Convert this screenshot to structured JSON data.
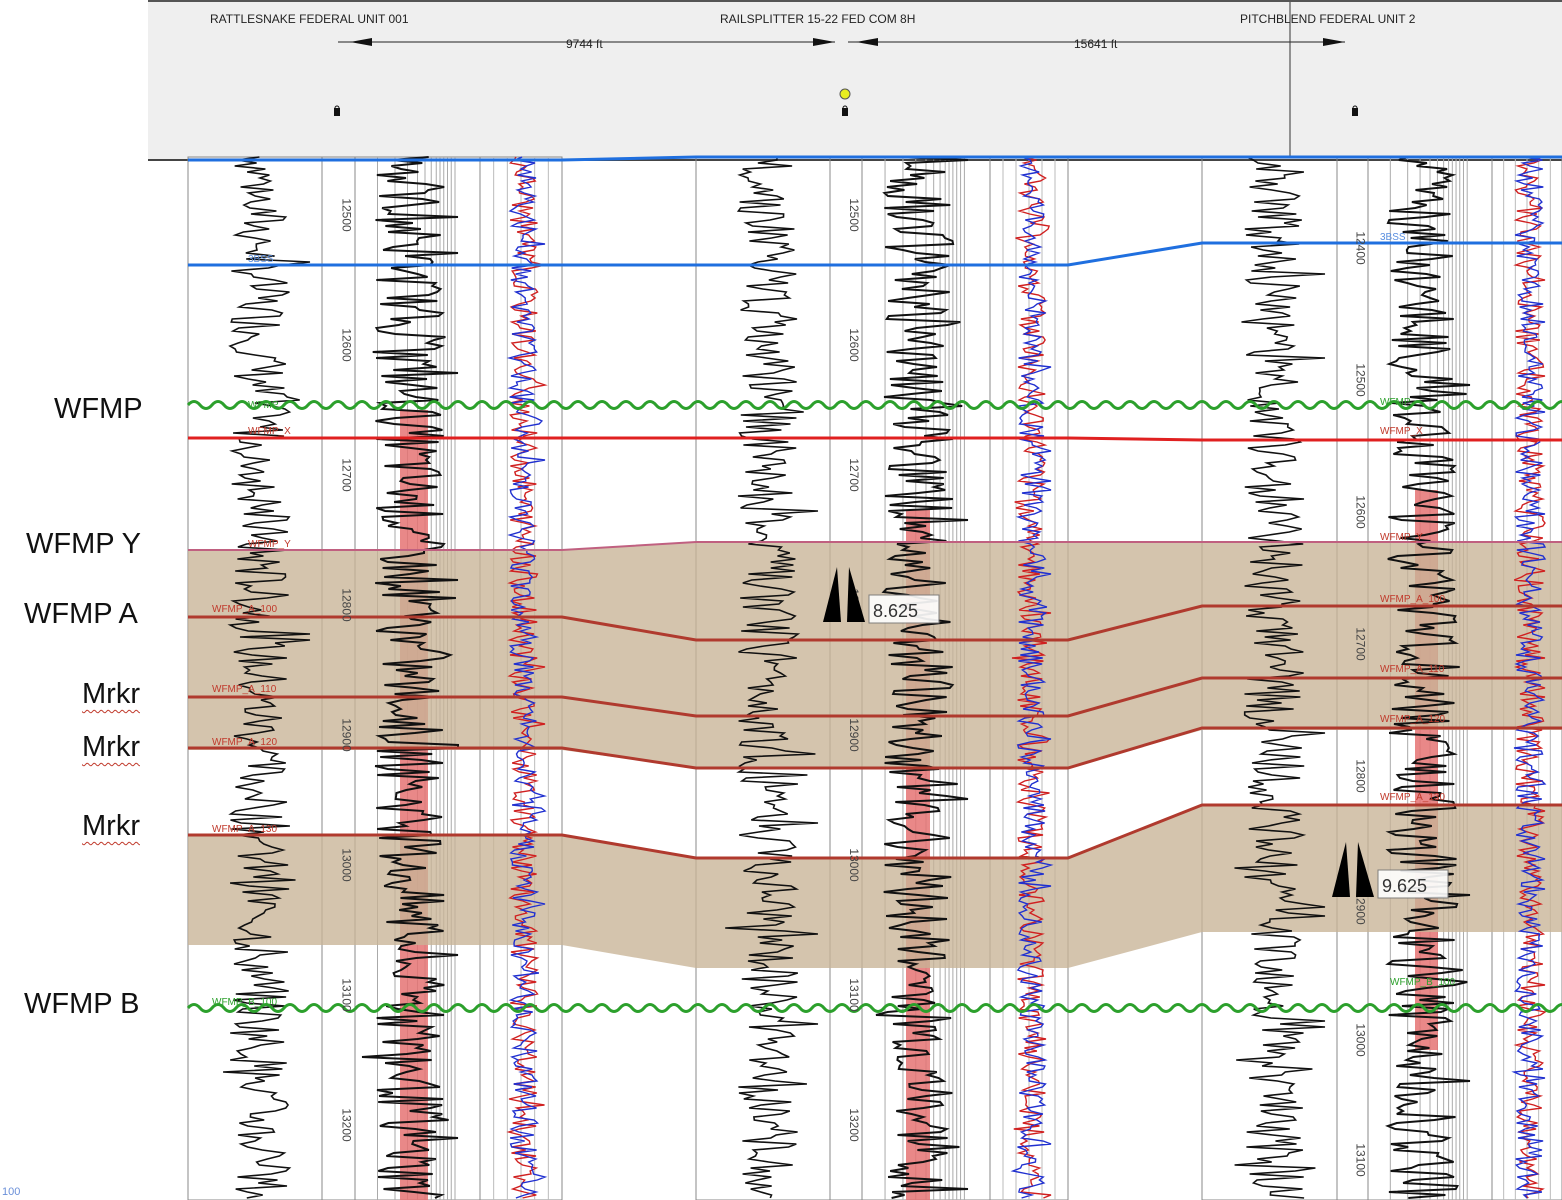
{
  "wells": [
    {
      "name": "RATTLESNAKE FEDERAL UNIT 001",
      "depths": [
        "12500",
        "12600",
        "12700",
        "12800",
        "12900",
        "13000",
        "13100",
        "13200"
      ]
    },
    {
      "name": "RAILSPLITTER 15-22 FED COM 8H",
      "depths": [
        "12500",
        "12600",
        "12700",
        "12800",
        "12900",
        "13000",
        "13100",
        "13200"
      ]
    },
    {
      "name": "PITCHBLEND FEDERAL UNIT 2",
      "depths": [
        "12400",
        "12500",
        "12600",
        "12700",
        "12800",
        "12900",
        "13000",
        "13100"
      ]
    }
  ],
  "distances": [
    "9744 ft",
    "15641 ft"
  ],
  "formations": [
    {
      "label": "WFMP",
      "color": "#2ca02c",
      "style": "wavy"
    },
    {
      "label": "WFMP Y",
      "color": "#c06080",
      "style": "solid"
    },
    {
      "label": "WFMP A",
      "color": "#b03a2e",
      "style": "solid"
    },
    {
      "label": "Mrkr",
      "color": "#b03a2e",
      "style": "solid"
    },
    {
      "label": "Mrkr",
      "color": "#b03a2e",
      "style": "solid"
    },
    {
      "label": "Mrkr",
      "color": "#b03a2e",
      "style": "solid"
    },
    {
      "label": "WFMP B",
      "color": "#2ca02c",
      "style": "wavy"
    }
  ],
  "track_picks": [
    "WFMP",
    "WFMP_X",
    "WFMP_Y",
    "WFMP_A_100",
    "WFMP_A_110",
    "WFMP_A_120",
    "WFMP_A_130",
    "WFMP_B_100",
    "3BSS"
  ],
  "casing": [
    "8.625",
    "9.625"
  ],
  "corner_text": "100",
  "colors": {
    "shale_fill": "#c8b496",
    "top_blue": "#1f6fdf",
    "red_top": "#e02020",
    "green_top": "#2ca02c",
    "pay_fill": "#e57373"
  }
}
